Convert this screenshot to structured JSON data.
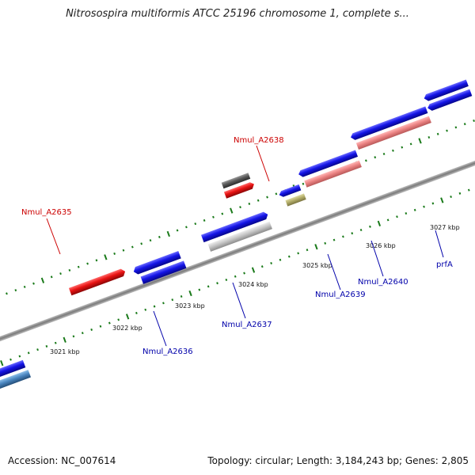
{
  "title": "Nitrosospira multiformis ATCC 25196 chromosome 1, complete s...",
  "footer": {
    "accession": "Accession: NC_007614",
    "summary": "Topology: circular; Length: 3,184,243 bp; Genes: 2,805"
  },
  "scale_labels": [
    "3021 kbp",
    "3022 kbp",
    "3023 kbp",
    "3024 kbp",
    "3025 kbp",
    "3026 kbp",
    "3027 kbp"
  ],
  "gene_labels": [
    {
      "text": "Nmul_A2635",
      "color": "#cc0000"
    },
    {
      "text": "Nmul_A2638",
      "color": "#cc0000"
    },
    {
      "text": "Nmul_A2636",
      "color": "#0000aa"
    },
    {
      "text": "Nmul_A2637",
      "color": "#0000aa"
    },
    {
      "text": "Nmul_A2639",
      "color": "#0000aa"
    },
    {
      "text": "Nmul_A2640",
      "color": "#0000aa"
    },
    {
      "text": "prfA",
      "color": "#0000aa"
    }
  ],
  "colors": {
    "cds_blue": "#1010e0",
    "rna_red": "#e01010",
    "pseudo_gray": "#555555",
    "gene_light": "#c8c8c8",
    "misc_olive": "#b5b070",
    "pink": "#ec8888",
    "steel": "#4a86c0",
    "tick_green": "#1a7a1a"
  }
}
